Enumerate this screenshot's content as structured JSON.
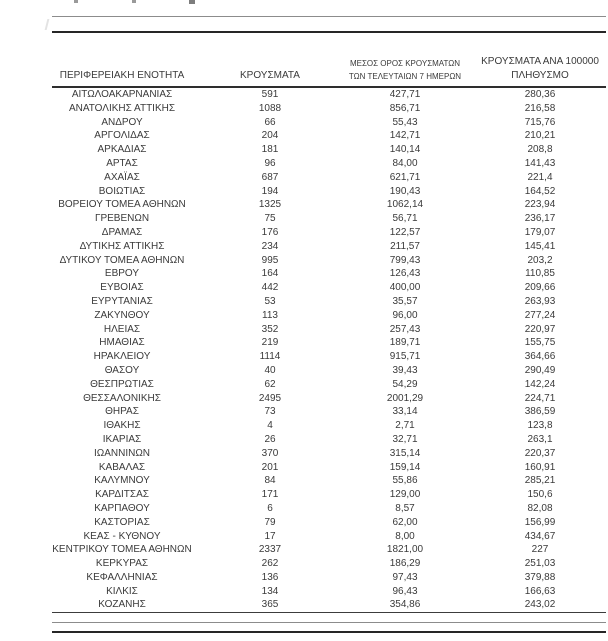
{
  "document": {
    "kind": "regional-covid-cases-table",
    "language": "el"
  },
  "colors": {
    "text": "#3a3a3a",
    "rule_dark": "#262626",
    "rule_gray": "#8c8c8c",
    "background": "#ffffff"
  },
  "table": {
    "headers": [
      {
        "line1": "ΠΕΡΙΦΕΡΕΙΑΚΗ ΕΝΟΤΗΤΑ",
        "line2": ""
      },
      {
        "line1": "ΚΡΟΥΣΜΑΤΑ",
        "line2": ""
      },
      {
        "line1": "ΜΕΣΟΣ ΟΡΟΣ ΚΡΟΥΣΜΑΤΩΝ",
        "line2": "ΤΩΝ ΤΕΛΕΥΤΑΙΩΝ 7 ΗΜΕΡΩΝ"
      },
      {
        "line1": "ΚΡΟΥΣΜΑΤΑ ΑΝΑ 100000",
        "line2": "ΠΛΗΘΥΣΜΟ"
      }
    ],
    "rows": [
      {
        "region": "ΑΙΤΩΛΟΑΚΑΡΝΑΝΙΑΣ",
        "cases": "591",
        "avg_7day": "427,71",
        "per_100k": "280,36"
      },
      {
        "region": "ΑΝΑΤΟΛΙΚΗΣ ΑΤΤΙΚΗΣ",
        "cases": "1088",
        "avg_7day": "856,71",
        "per_100k": "216,58"
      },
      {
        "region": "ΑΝΔΡΟΥ",
        "cases": "66",
        "avg_7day": "55,43",
        "per_100k": "715,76"
      },
      {
        "region": "ΑΡΓΟΛΙΔΑΣ",
        "cases": "204",
        "avg_7day": "142,71",
        "per_100k": "210,21"
      },
      {
        "region": "ΑΡΚΑΔΙΑΣ",
        "cases": "181",
        "avg_7day": "140,14",
        "per_100k": "208,8"
      },
      {
        "region": "ΑΡΤΑΣ",
        "cases": "96",
        "avg_7day": "84,00",
        "per_100k": "141,43"
      },
      {
        "region": "ΑΧΑΪΑΣ",
        "cases": "687",
        "avg_7day": "621,71",
        "per_100k": "221,4"
      },
      {
        "region": "ΒΟΙΩΤΙΑΣ",
        "cases": "194",
        "avg_7day": "190,43",
        "per_100k": "164,52"
      },
      {
        "region": "ΒΟΡΕΙΟΥ ΤΟΜΕΑ ΑΘΗΝΩΝ",
        "cases": "1325",
        "avg_7day": "1062,14",
        "per_100k": "223,94"
      },
      {
        "region": "ΓΡΕΒΕΝΩΝ",
        "cases": "75",
        "avg_7day": "56,71",
        "per_100k": "236,17"
      },
      {
        "region": "ΔΡΑΜΑΣ",
        "cases": "176",
        "avg_7day": "122,57",
        "per_100k": "179,07"
      },
      {
        "region": "ΔΥΤΙΚΗΣ ΑΤΤΙΚΗΣ",
        "cases": "234",
        "avg_7day": "211,57",
        "per_100k": "145,41"
      },
      {
        "region": "ΔΥΤΙΚΟΥ ΤΟΜΕΑ ΑΘΗΝΩΝ",
        "cases": "995",
        "avg_7day": "799,43",
        "per_100k": "203,2"
      },
      {
        "region": "ΕΒΡΟΥ",
        "cases": "164",
        "avg_7day": "126,43",
        "per_100k": "110,85"
      },
      {
        "region": "ΕΥΒΟΙΑΣ",
        "cases": "442",
        "avg_7day": "400,00",
        "per_100k": "209,66"
      },
      {
        "region": "ΕΥΡΥΤΑΝΙΑΣ",
        "cases": "53",
        "avg_7day": "35,57",
        "per_100k": "263,93"
      },
      {
        "region": "ΖΑΚΥΝΘΟΥ",
        "cases": "113",
        "avg_7day": "96,00",
        "per_100k": "277,24"
      },
      {
        "region": "ΗΛΕΙΑΣ",
        "cases": "352",
        "avg_7day": "257,43",
        "per_100k": "220,97"
      },
      {
        "region": "ΗΜΑΘΙΑΣ",
        "cases": "219",
        "avg_7day": "189,71",
        "per_100k": "155,75"
      },
      {
        "region": "ΗΡΑΚΛΕΙΟΥ",
        "cases": "1114",
        "avg_7day": "915,71",
        "per_100k": "364,66"
      },
      {
        "region": "ΘΑΣΟΥ",
        "cases": "40",
        "avg_7day": "39,43",
        "per_100k": "290,49"
      },
      {
        "region": "ΘΕΣΠΡΩΤΙΑΣ",
        "cases": "62",
        "avg_7day": "54,29",
        "per_100k": "142,24"
      },
      {
        "region": "ΘΕΣΣΑΛΟΝΙΚΗΣ",
        "cases": "2495",
        "avg_7day": "2001,29",
        "per_100k": "224,71"
      },
      {
        "region": "ΘΗΡΑΣ",
        "cases": "73",
        "avg_7day": "33,14",
        "per_100k": "386,59"
      },
      {
        "region": "ΙΘΑΚΗΣ",
        "cases": "4",
        "avg_7day": "2,71",
        "per_100k": "123,8"
      },
      {
        "region": "ΙΚΑΡΙΑΣ",
        "cases": "26",
        "avg_7day": "32,71",
        "per_100k": "263,1"
      },
      {
        "region": "ΙΩΑΝΝΙΝΩΝ",
        "cases": "370",
        "avg_7day": "315,14",
        "per_100k": "220,37"
      },
      {
        "region": "ΚΑΒΑΛΑΣ",
        "cases": "201",
        "avg_7day": "159,14",
        "per_100k": "160,91"
      },
      {
        "region": "ΚΑΛΥΜΝΟΥ",
        "cases": "84",
        "avg_7day": "55,86",
        "per_100k": "285,21"
      },
      {
        "region": "ΚΑΡΔΙΤΣΑΣ",
        "cases": "171",
        "avg_7day": "129,00",
        "per_100k": "150,6"
      },
      {
        "region": "ΚΑΡΠΑΘΟΥ",
        "cases": "6",
        "avg_7day": "8,57",
        "per_100k": "82,08"
      },
      {
        "region": "ΚΑΣΤΟΡΙΑΣ",
        "cases": "79",
        "avg_7day": "62,00",
        "per_100k": "156,99"
      },
      {
        "region": "ΚΕΑΣ - ΚΥΘΝΟΥ",
        "cases": "17",
        "avg_7day": "8,00",
        "per_100k": "434,67"
      },
      {
        "region": "ΚΕΝΤΡΙΚΟΥ ΤΟΜΕΑ ΑΘΗΝΩΝ",
        "cases": "2337",
        "avg_7day": "1821,00",
        "per_100k": "227"
      },
      {
        "region": "ΚΕΡΚΥΡΑΣ",
        "cases": "262",
        "avg_7day": "186,29",
        "per_100k": "251,03"
      },
      {
        "region": "ΚΕΦΑΛΛΗΝΙΑΣ",
        "cases": "136",
        "avg_7day": "97,43",
        "per_100k": "379,88"
      },
      {
        "region": "ΚΙΛΚΙΣ",
        "cases": "134",
        "avg_7day": "96,43",
        "per_100k": "166,63"
      },
      {
        "region": "ΚΟΖΑΝΗΣ",
        "cases": "365",
        "avg_7day": "354,86",
        "per_100k": "243,02"
      }
    ]
  }
}
